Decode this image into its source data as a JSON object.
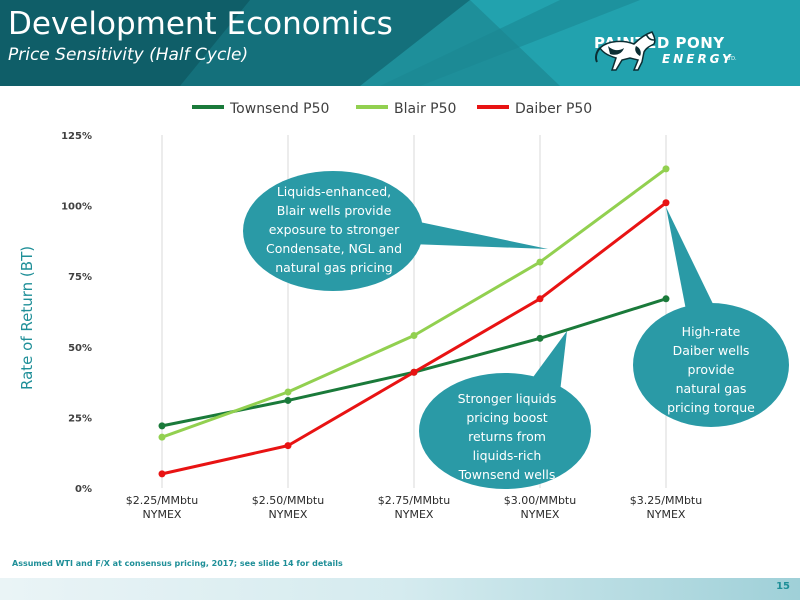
{
  "slide": {
    "title": "Development Economics",
    "subtitle": "Price Sensitivity (Half Cycle)",
    "logo_line1": "PAINTED PONY",
    "logo_line2": "ENERGY",
    "logo_ltd": "LTD.",
    "footnote": "Assumed WTI and F/X at consensus pricing, 2017; see slide 14 for details",
    "page_number": "15"
  },
  "chart_data": {
    "type": "line",
    "ylabel": "Rate of Return (BT)",
    "categories": [
      [
        "$2.25/MMbtu",
        "NYMEX"
      ],
      [
        "$2.50/MMbtu",
        "NYMEX"
      ],
      [
        "$2.75/MMbtu",
        "NYMEX"
      ],
      [
        "$3.00/MMbtu",
        "NYMEX"
      ],
      [
        "$3.25/MMbtu",
        "NYMEX"
      ]
    ],
    "y_ticks": [
      "0%",
      "25%",
      "50%",
      "75%",
      "100%",
      "125%"
    ],
    "ylim": [
      0,
      125
    ],
    "legend_position": "top",
    "grid": "vertical",
    "series": [
      {
        "name": "Townsend P50",
        "color": "#1a7a3a",
        "values": [
          22,
          31,
          41,
          53,
          67
        ]
      },
      {
        "name": "Blair P50",
        "color": "#92d050",
        "values": [
          18,
          34,
          54,
          80,
          113
        ]
      },
      {
        "name": "Daiber P50",
        "color": "#e81313",
        "values": [
          5,
          15,
          41,
          67,
          101
        ]
      }
    ],
    "annotations": [
      {
        "id": "blair",
        "text": [
          "Liquids-enhanced,",
          "Blair wells provide",
          "exposure to stronger",
          "Condensate, NGL and",
          "natural gas pricing"
        ]
      },
      {
        "id": "townsend",
        "text": [
          "Stronger liquids",
          "pricing boost",
          "returns from",
          "liquids-rich",
          "Townsend wells"
        ]
      },
      {
        "id": "daiber",
        "text": [
          "High-rate",
          "Daiber wells",
          "provide",
          "natural gas",
          "pricing torque"
        ]
      }
    ]
  }
}
